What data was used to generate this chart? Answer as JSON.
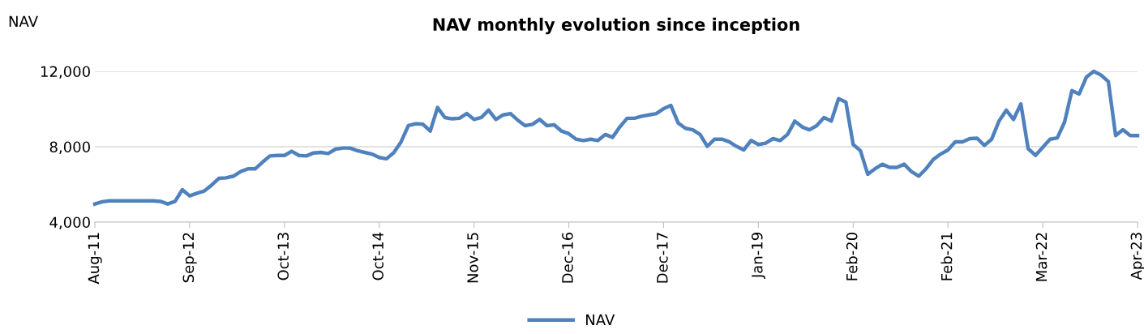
{
  "chart_data": {
    "type": "line",
    "title": "NAV monthly evolution since inception",
    "ylabel": "NAV",
    "categories": [
      "Aug-11",
      null,
      null,
      null,
      null,
      null,
      null,
      null,
      null,
      null,
      null,
      null,
      null,
      "Sep-12",
      null,
      null,
      null,
      null,
      null,
      null,
      null,
      null,
      null,
      null,
      null,
      null,
      "Oct-13",
      null,
      null,
      null,
      null,
      null,
      null,
      null,
      null,
      null,
      null,
      null,
      null,
      "Oct-14",
      null,
      null,
      null,
      null,
      null,
      null,
      null,
      null,
      null,
      null,
      null,
      null,
      "Nov-15",
      null,
      null,
      null,
      null,
      null,
      null,
      null,
      null,
      null,
      null,
      null,
      null,
      "Dec-16",
      null,
      null,
      null,
      null,
      null,
      null,
      null,
      null,
      null,
      null,
      null,
      null,
      "Dec-17",
      null,
      null,
      null,
      null,
      null,
      null,
      null,
      null,
      null,
      null,
      null,
      null,
      "Jan-19",
      null,
      null,
      null,
      null,
      null,
      null,
      null,
      null,
      null,
      null,
      null,
      null,
      "Feb-20",
      null,
      null,
      null,
      null,
      null,
      null,
      null,
      null,
      null,
      null,
      null,
      null,
      "Feb-21",
      null,
      null,
      null,
      null,
      null,
      null,
      null,
      null,
      null,
      null,
      null,
      null,
      "Mar-22",
      null,
      null,
      null,
      null,
      null,
      null,
      null,
      null,
      null,
      null,
      null,
      null,
      "Apr-23"
    ],
    "series": [
      {
        "name": "NAV",
        "color": "#4f81bd",
        "values": [
          4960,
          5080,
          5130,
          5130,
          5130,
          5130,
          5130,
          5130,
          5130,
          5100,
          4960,
          5100,
          5720,
          5390,
          5530,
          5650,
          5960,
          6320,
          6350,
          6440,
          6680,
          6830,
          6830,
          7180,
          7510,
          7540,
          7540,
          7760,
          7540,
          7510,
          7670,
          7700,
          7640,
          7870,
          7930,
          7930,
          7790,
          7700,
          7610,
          7430,
          7360,
          7690,
          8260,
          9120,
          9220,
          9190,
          8830,
          10080,
          9550,
          9480,
          9510,
          9760,
          9450,
          9550,
          9940,
          9450,
          9690,
          9760,
          9410,
          9120,
          9190,
          9450,
          9120,
          9160,
          8830,
          8690,
          8400,
          8330,
          8400,
          8330,
          8650,
          8500,
          9050,
          9510,
          9510,
          9620,
          9690,
          9760,
          10020,
          10190,
          9260,
          8980,
          8900,
          8650,
          8020,
          8400,
          8400,
          8260,
          8020,
          7830,
          8330,
          8120,
          8190,
          8430,
          8330,
          8650,
          9360,
          9050,
          8900,
          9120,
          9550,
          9360,
          10550,
          10370,
          8120,
          7790,
          6540,
          6830,
          7070,
          6900,
          6900,
          7070,
          6680,
          6440,
          6830,
          7330,
          7610,
          7830,
          8260,
          8260,
          8430,
          8450,
          8070,
          8400,
          9360,
          9940,
          9450,
          10270,
          7900,
          7540,
          7970,
          8400,
          8470,
          9310,
          10980,
          10800,
          11700,
          12000,
          11800,
          11460,
          8590,
          8900,
          8590,
          8590
        ]
      }
    ],
    "ylim": [
      4000,
      12000
    ],
    "yticks": [
      {
        "value": 4000,
        "label": "4,000"
      },
      {
        "value": 8000,
        "label": "8,000"
      },
      {
        "value": 12000,
        "label": "12,000"
      }
    ],
    "grid": "y",
    "legend": "bottom",
    "marker": "none",
    "line_style": "solid"
  }
}
